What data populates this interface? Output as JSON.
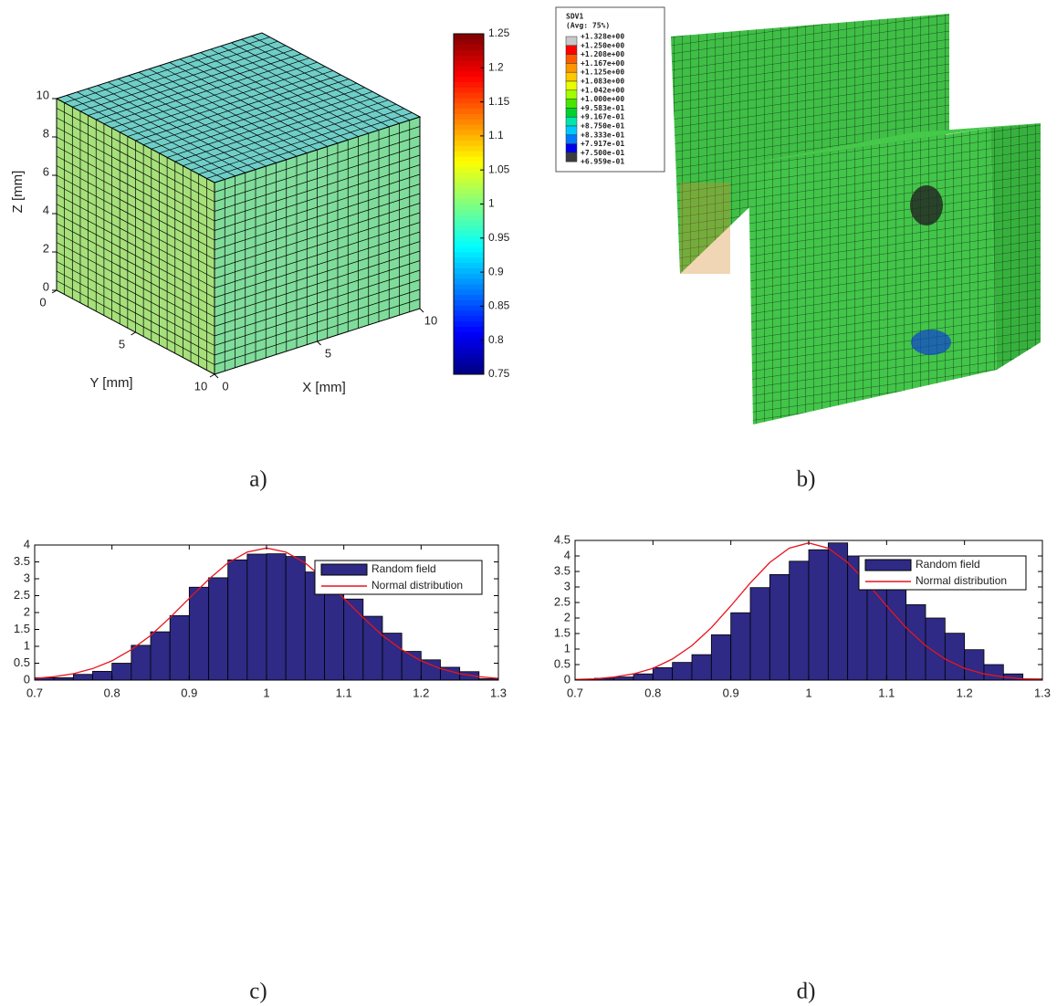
{
  "chart_data": [
    {
      "type": "surface3d",
      "caption": "a)",
      "xlabel": "X [mm]",
      "ylabel": "Y [mm]",
      "zlabel": "Z [mm]",
      "xlim": [
        0,
        10
      ],
      "ylim": [
        0,
        10
      ],
      "zlim": [
        0,
        10
      ],
      "xticks": [
        0,
        5,
        10
      ],
      "yticks": [
        0,
        5,
        10
      ],
      "zticks": [
        0,
        2,
        4,
        6,
        8,
        10
      ],
      "colormap": "jet",
      "clim": [
        0.75,
        1.25
      ],
      "cticks": [
        0.75,
        0.8,
        0.85,
        0.9,
        0.95,
        1,
        1.05,
        1.1,
        1.15,
        1.2,
        1.25
      ]
    },
    {
      "type": "contour3d",
      "caption": "b)",
      "legend_title": "SDV1",
      "legend_subtitle": "(Avg: 75%)",
      "levels": [
        {
          "value": 1.328,
          "label": "+1.328e+00"
        },
        {
          "value": 1.25,
          "label": "+1.250e+00"
        },
        {
          "value": 1.208,
          "label": "+1.208e+00"
        },
        {
          "value": 1.167,
          "label": "+1.167e+00"
        },
        {
          "value": 1.125,
          "label": "+1.125e+00"
        },
        {
          "value": 1.083,
          "label": "+1.083e+00"
        },
        {
          "value": 1.042,
          "label": "+1.042e+00"
        },
        {
          "value": 1.0,
          "label": "+1.000e+00"
        },
        {
          "value": 0.9583,
          "label": "+9.583e-01"
        },
        {
          "value": 0.9167,
          "label": "+9.167e-01"
        },
        {
          "value": 0.875,
          "label": "+8.750e-01"
        },
        {
          "value": 0.8333,
          "label": "+8.333e-01"
        },
        {
          "value": 0.7917,
          "label": "+7.917e-01"
        },
        {
          "value": 0.75,
          "label": "+7.500e-01"
        },
        {
          "value": 0.6959,
          "label": "+6.959e-01"
        }
      ],
      "colors": [
        "#c8c8c8",
        "#ff0000",
        "#ff5a00",
        "#ff9600",
        "#ffc800",
        "#e6ff00",
        "#a0ff00",
        "#46e600",
        "#00d22d",
        "#00e6aa",
        "#00c8ff",
        "#0078ff",
        "#0000e6",
        "#3c3c3c"
      ]
    },
    {
      "type": "histogram",
      "caption": "c)",
      "legend": "upper right",
      "bins": [
        0.7,
        0.725,
        0.75,
        0.775,
        0.8,
        0.825,
        0.85,
        0.875,
        0.9,
        0.925,
        0.95,
        0.975,
        1.0,
        1.025,
        1.05,
        1.075,
        1.1,
        1.125,
        1.15,
        1.175,
        1.2,
        1.225,
        1.25,
        1.275,
        1.3
      ],
      "xlim": [
        0.7,
        1.3
      ],
      "ylim": [
        0,
        4
      ],
      "xticks": [
        0.7,
        0.8,
        0.9,
        1,
        1.1,
        1.2,
        1.3
      ],
      "yticks": [
        0,
        0.5,
        1,
        1.5,
        2,
        2.5,
        3,
        3.5,
        4
      ],
      "series": [
        {
          "name": "Random field",
          "color": "#2e2a85",
          "values": [
            0.07,
            0.07,
            0.17,
            0.26,
            0.5,
            1.03,
            1.43,
            1.91,
            2.75,
            3.03,
            3.56,
            3.73,
            3.74,
            3.66,
            3.2,
            3.05,
            2.4,
            1.89,
            1.39,
            0.85,
            0.6,
            0.38,
            0.25,
            0.04
          ]
        },
        {
          "name": "Normal distribution",
          "color": "#e8141e",
          "x": [
            0.7,
            0.725,
            0.75,
            0.775,
            0.8,
            0.825,
            0.85,
            0.875,
            0.9,
            0.925,
            0.95,
            0.975,
            1.0,
            1.025,
            1.05,
            1.075,
            1.1,
            1.125,
            1.15,
            1.175,
            1.2,
            1.225,
            1.25,
            1.275,
            1.3
          ],
          "values": [
            0.05,
            0.1,
            0.19,
            0.34,
            0.57,
            0.9,
            1.32,
            1.85,
            2.42,
            2.98,
            3.47,
            3.79,
            3.91,
            3.79,
            3.47,
            2.98,
            2.42,
            1.85,
            1.32,
            0.9,
            0.57,
            0.34,
            0.19,
            0.1,
            0.05
          ]
        }
      ]
    },
    {
      "type": "histogram",
      "caption": "d)",
      "legend": "upper right",
      "bins": [
        0.7,
        0.725,
        0.75,
        0.775,
        0.8,
        0.825,
        0.85,
        0.875,
        0.9,
        0.925,
        0.95,
        0.975,
        1.0,
        1.025,
        1.05,
        1.075,
        1.1,
        1.125,
        1.15,
        1.175,
        1.2,
        1.225,
        1.25,
        1.275,
        1.3
      ],
      "xlim": [
        0.7,
        1.3
      ],
      "ylim": [
        0,
        4.5
      ],
      "xticks": [
        0.7,
        0.8,
        0.9,
        1,
        1.1,
        1.2,
        1.3
      ],
      "yticks": [
        0,
        0.5,
        1,
        1.5,
        2,
        2.5,
        3,
        3.5,
        4,
        4.5
      ],
      "series": [
        {
          "name": "Random field",
          "color": "#2e2a85",
          "values": [
            0.02,
            0.06,
            0.1,
            0.2,
            0.4,
            0.57,
            0.82,
            1.46,
            2.17,
            2.98,
            3.4,
            3.83,
            4.2,
            4.42,
            4.0,
            3.76,
            3.13,
            2.43,
            2.0,
            1.51,
            0.98,
            0.5,
            0.2,
            0.04
          ]
        },
        {
          "name": "Normal distribution",
          "color": "#e8141e",
          "x": [
            0.7,
            0.725,
            0.75,
            0.775,
            0.8,
            0.825,
            0.85,
            0.875,
            0.9,
            0.925,
            0.95,
            0.975,
            1.0,
            1.025,
            1.05,
            1.075,
            1.1,
            1.125,
            1.15,
            1.175,
            1.2,
            1.225,
            1.25,
            1.275,
            1.3
          ],
          "values": [
            0.02,
            0.04,
            0.1,
            0.2,
            0.38,
            0.68,
            1.11,
            1.69,
            2.39,
            3.13,
            3.79,
            4.25,
            4.42,
            4.25,
            3.79,
            3.13,
            2.39,
            1.69,
            1.11,
            0.68,
            0.38,
            0.2,
            0.1,
            0.04,
            0.02
          ]
        }
      ]
    }
  ]
}
